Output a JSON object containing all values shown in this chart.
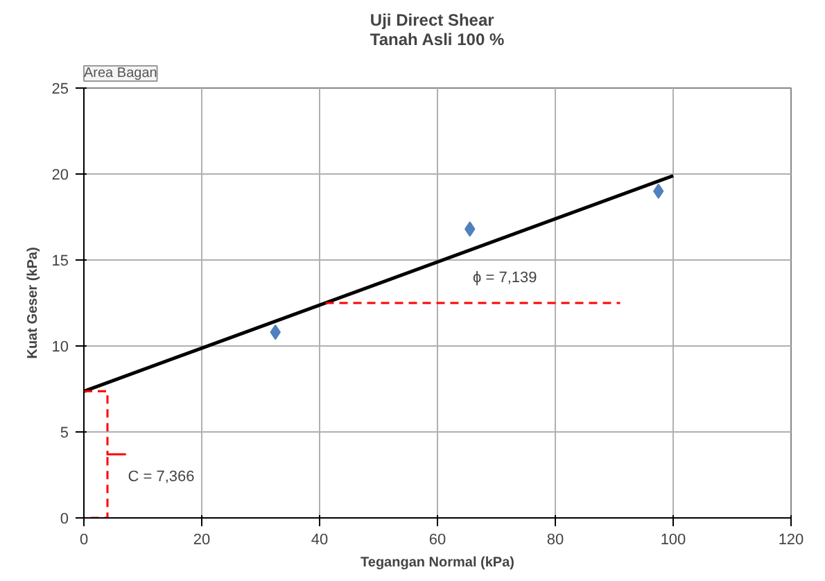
{
  "chart_data": {
    "type": "scatter",
    "title": "Uji Direct Shear\nTanah Asli 100 %",
    "xlabel": "Tegangan Normal (kPa)",
    "ylabel": "Kuat Geser (kPa)",
    "xlim": [
      0,
      120
    ],
    "xticks": [
      0,
      20,
      40,
      60,
      80,
      100,
      120
    ],
    "ylim": [
      0,
      25
    ],
    "yticks": [
      0,
      5,
      10,
      15,
      20,
      25
    ],
    "grid": true,
    "marker": "diamond",
    "series": [
      {
        "color": "#4f81bd",
        "x": [
          32.5,
          65.5,
          97.5
        ],
        "values": [
          10.8,
          16.8,
          19.0
        ]
      },
      {
        "type": "line",
        "color": "#000000",
        "marker": "none",
        "line_style": "solid",
        "x": [
          0,
          100
        ],
        "values": [
          7.366,
          19.9
        ]
      },
      {
        "type": "line",
        "color": "#ff0000",
        "marker": "none",
        "line_style": "dashed",
        "x": [
          41,
          91
        ],
        "values": [
          12.5,
          12.5
        ]
      },
      {
        "type": "line",
        "color": "#ff0000",
        "marker": "none",
        "line_style": "dashed",
        "x": [
          0,
          4,
          4,
          7,
          4,
          4,
          0
        ],
        "values": [
          7.366,
          7.366,
          3.7,
          3.7,
          3.7,
          0,
          0
        ]
      }
    ],
    "annotations": [
      "Area Bagan",
      "ϕ = 7,139",
      "C = 7,366"
    ]
  }
}
